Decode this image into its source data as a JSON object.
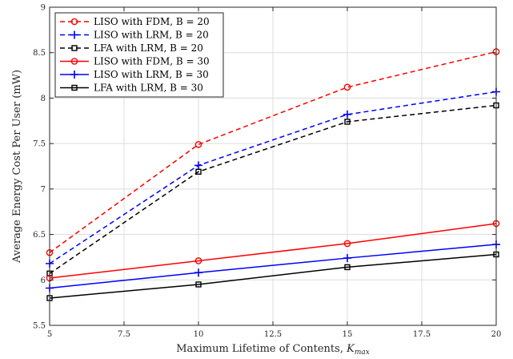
{
  "chart_data": {
    "type": "line",
    "xlabel": "Maximum Lifetime of Contents, ",
    "xlabel_symbol": "K",
    "xlabel_subscript": "max",
    "ylabel": "Average Energy Cost Per User (mW)",
    "x": [
      5,
      10,
      15,
      20
    ],
    "xlim": [
      5,
      20
    ],
    "ylim": [
      5.5,
      9
    ],
    "xticks": [
      5,
      7.5,
      10,
      12.5,
      15,
      17.5,
      20
    ],
    "xtick_labels": [
      "5",
      "7.5",
      "10",
      "12.5",
      "15",
      "17.5",
      "20"
    ],
    "yticks": [
      5.5,
      6,
      6.5,
      7,
      7.5,
      8,
      8.5,
      9
    ],
    "ytick_labels": [
      "5.5",
      "6",
      "6.5",
      "7",
      "7.5",
      "8",
      "8.5",
      "9"
    ],
    "grid": true,
    "legend_position": "top-left",
    "series": [
      {
        "name": "LISO with FDM, B = 20",
        "values": [
          6.3,
          7.49,
          8.12,
          8.51
        ],
        "color": "#ff0000",
        "dash": "dashed",
        "marker": "circle"
      },
      {
        "name": "LISO with LRM, B = 20",
        "values": [
          6.18,
          7.26,
          7.82,
          8.07
        ],
        "color": "#0000ff",
        "dash": "dashed",
        "marker": "plus"
      },
      {
        "name": "LFA with LRM, B = 20",
        "values": [
          6.07,
          7.19,
          7.74,
          7.92
        ],
        "color": "#000000",
        "dash": "dashed",
        "marker": "square"
      },
      {
        "name": "LISO with FDM, B = 30",
        "values": [
          6.02,
          6.21,
          6.4,
          6.62
        ],
        "color": "#ff0000",
        "dash": "solid",
        "marker": "circle"
      },
      {
        "name": "LISO with LRM, B = 30",
        "values": [
          5.91,
          6.08,
          6.24,
          6.39
        ],
        "color": "#0000ff",
        "dash": "solid",
        "marker": "plus"
      },
      {
        "name": "LFA with LRM, B = 30",
        "values": [
          5.8,
          5.95,
          6.14,
          6.28
        ],
        "color": "#000000",
        "dash": "solid",
        "marker": "square"
      }
    ]
  }
}
